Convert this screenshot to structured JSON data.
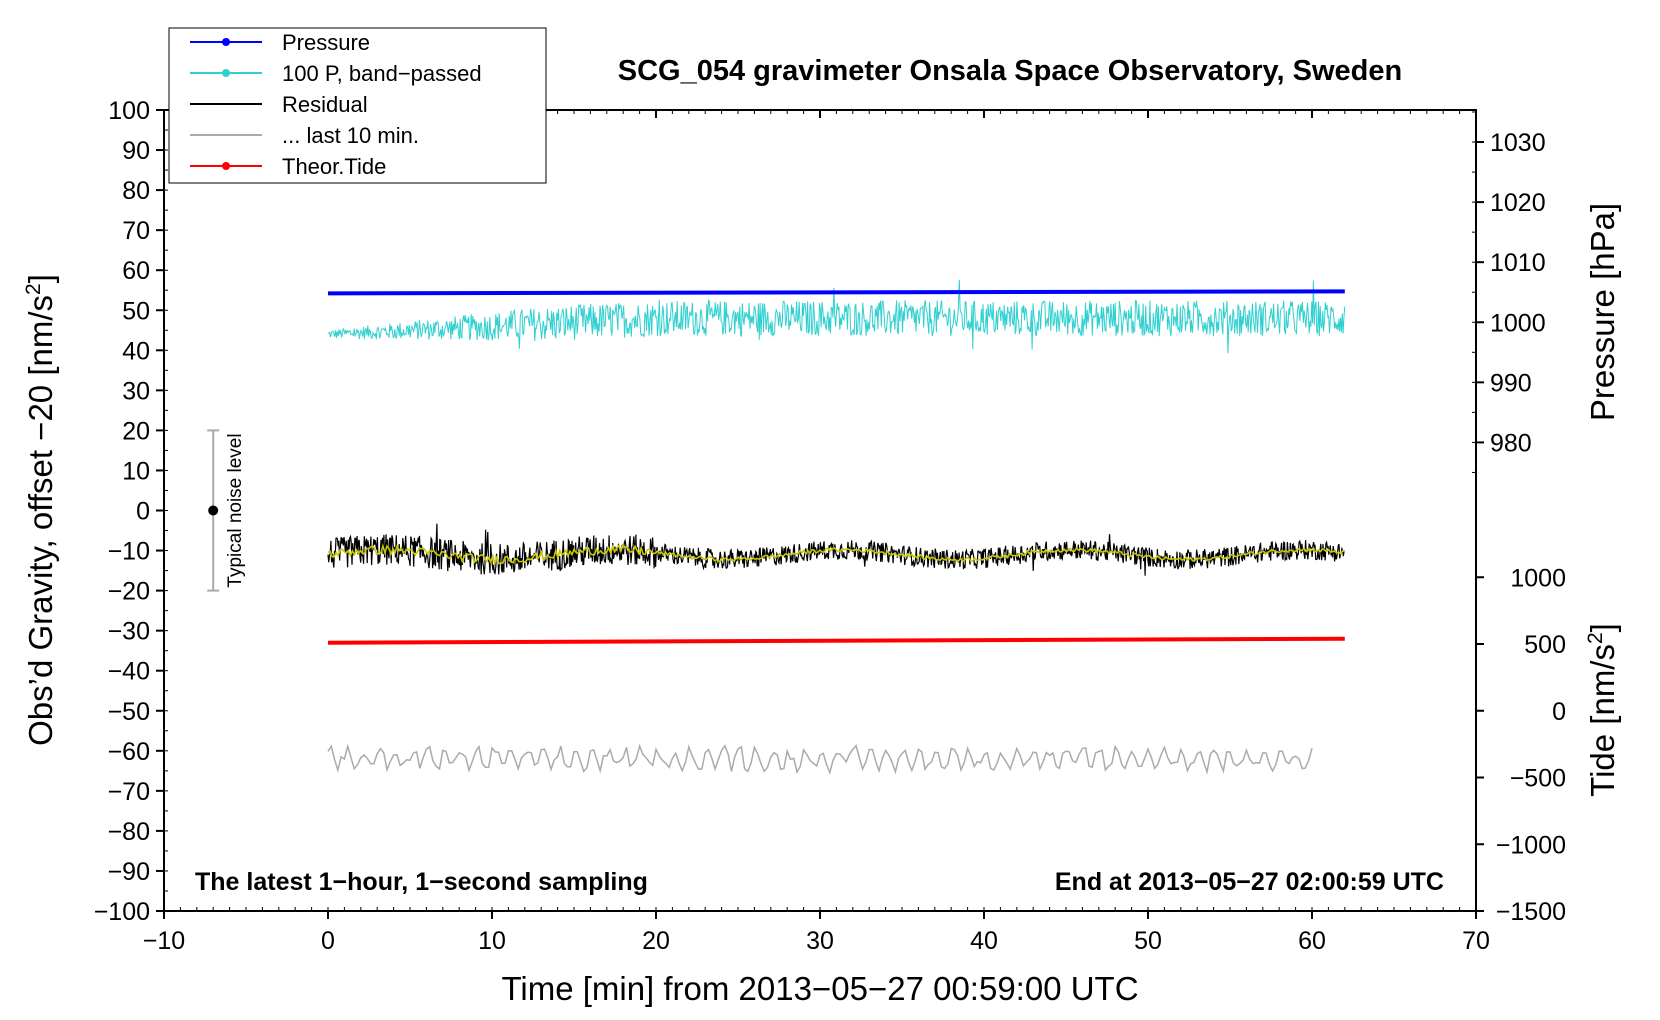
{
  "chart_data": {
    "type": "line",
    "title": "SCG_054 gravimeter Onsala Space Observatory, Sweden",
    "xlabel": "Time [min] from 2013−05−27 00:59:00 UTC",
    "ylabel_left": "Obs’d Gravity, offset −20 [nm/s",
    "ylabel_left_sup": "2",
    "ylabel_left_end": "]",
    "ylabel_right_pressure": "Pressure [hPa]",
    "ylabel_right_tide": "Tide [nm/s",
    "ylabel_right_tide_sup": "2",
    "ylabel_right_tide_end": "]",
    "xlim": [
      -10,
      70
    ],
    "ylim": [
      -100,
      100
    ],
    "x_ticks": [
      "−10",
      "0",
      "10",
      "20",
      "30",
      "40",
      "50",
      "60",
      "70"
    ],
    "y_ticks": [
      "100",
      "90",
      "80",
      "70",
      "60",
      "50",
      "40",
      "30",
      "20",
      "10",
      "0",
      "−10",
      "−20",
      "−30",
      "−40",
      "−50",
      "−60",
      "−70",
      "−80",
      "−90",
      "−100"
    ],
    "pressure_axis": {
      "ticks": [
        "980",
        "990",
        "1000",
        "1010",
        "1020",
        "1030"
      ],
      "values": [
        980,
        990,
        1000,
        1010,
        1020,
        1030
      ],
      "ref_value": 1000,
      "ref_y": 47,
      "ref_y2": 62,
      "ref_value2": 1010
    },
    "tide_axis": {
      "ticks": [
        "1000",
        "500",
        "0",
        "−500",
        "−1000",
        "−1500"
      ],
      "values": [
        1000,
        500,
        0,
        -500,
        -1000,
        -1500
      ],
      "ref_value": 0,
      "ref_y": -50,
      "ref_value2": -1500,
      "ref_y2": -100
    },
    "legend": [
      {
        "label": "Pressure",
        "color": "#0000ff",
        "marker": true
      },
      {
        "label": "100 P, band−passed",
        "color": "#30d0d0",
        "marker": true
      },
      {
        "label": "Residual",
        "color": "#000000",
        "marker": false
      },
      {
        "label": "... last 10 min.",
        "color": "#aaaaaa",
        "marker": false
      },
      {
        "label": "Theor.Tide",
        "color": "#ff0000",
        "marker": true
      }
    ],
    "series": [
      {
        "name": "Pressure",
        "color": "#0000ff",
        "x_start": 0,
        "x_end": 62,
        "y_start": 54.2,
        "y_end": 54.7
      },
      {
        "name": "100 P, band−passed",
        "color": "#30d0d0",
        "x_start": 0,
        "x_end": 62,
        "center": 50,
        "amplitude_range": [
          36,
          61
        ]
      },
      {
        "name": "Residual",
        "color": "#000000",
        "x_start": 0,
        "x_end": 62,
        "center": -11,
        "amplitude_range": [
          -23,
          -3
        ]
      },
      {
        "name": "Residual smoothed",
        "color": "#c8c800",
        "x_start": 0,
        "x_end": 62,
        "center": -11
      },
      {
        "name": "... last 10 min.",
        "color": "#aaaaaa",
        "x_start": 0,
        "x_end": 60,
        "center": -62,
        "amplitude_range": [
          -67,
          -57
        ]
      },
      {
        "name": "Theor.Tide",
        "color": "#ff0000",
        "x_start": 0,
        "x_end": 62,
        "y_start": -33,
        "y_end": -32
      }
    ],
    "noise_level": {
      "label": "Typical noise level",
      "x": -7,
      "y_center": 0,
      "y_low": -20,
      "y_high": 20
    },
    "annotation_left": "The latest 1−hour, 1−second sampling",
    "annotation_right": "End at 2013−05−27 02:00:59 UTC"
  }
}
